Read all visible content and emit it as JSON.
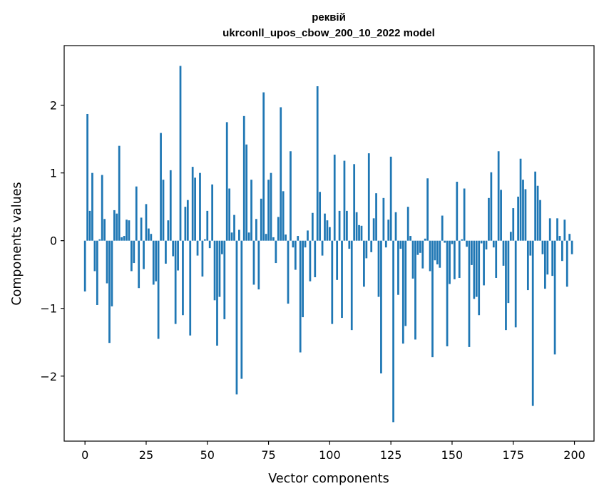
{
  "chart_data": {
    "type": "bar",
    "title": "реквій",
    "subtitle": "ukrconll_upos_cbow_200_10_2022 model",
    "xlabel": "Vector components",
    "ylabel": "Components values",
    "xlim": [
      -8.5,
      208
    ],
    "ylim": [
      -2.96,
      2.88
    ],
    "xticks": [
      0,
      25,
      50,
      75,
      100,
      125,
      150,
      175,
      200
    ],
    "yticks": [
      -2,
      -1,
      0,
      1,
      2
    ],
    "ytick_labels": [
      "−2",
      "−1",
      "0",
      "1",
      "2"
    ],
    "bar_color": "#1f77b4",
    "grid": false,
    "legend": "none",
    "x": [
      0,
      1,
      2,
      3,
      4,
      5,
      6,
      7,
      8,
      9,
      10,
      11,
      12,
      13,
      14,
      15,
      16,
      17,
      18,
      19,
      20,
      21,
      22,
      23,
      24,
      25,
      26,
      27,
      28,
      29,
      30,
      31,
      32,
      33,
      34,
      35,
      36,
      37,
      38,
      39,
      40,
      41,
      42,
      43,
      44,
      45,
      46,
      47,
      48,
      49,
      50,
      51,
      52,
      53,
      54,
      55,
      56,
      57,
      58,
      59,
      60,
      61,
      62,
      63,
      64,
      65,
      66,
      67,
      68,
      69,
      70,
      71,
      72,
      73,
      74,
      75,
      76,
      77,
      78,
      79,
      80,
      81,
      82,
      83,
      84,
      85,
      86,
      87,
      88,
      89,
      90,
      91,
      92,
      93,
      94,
      95,
      96,
      97,
      98,
      99,
      100,
      101,
      102,
      103,
      104,
      105,
      106,
      107,
      108,
      109,
      110,
      111,
      112,
      113,
      114,
      115,
      116,
      117,
      118,
      119,
      120,
      121,
      122,
      123,
      124,
      125,
      126,
      127,
      128,
      129,
      130,
      131,
      132,
      133,
      134,
      135,
      136,
      137,
      138,
      139,
      140,
      141,
      142,
      143,
      144,
      145,
      146,
      147,
      148,
      149,
      150,
      151,
      152,
      153,
      154,
      155,
      156,
      157,
      158,
      159,
      160,
      161,
      162,
      163,
      164,
      165,
      166,
      167,
      168,
      169,
      170,
      171,
      172,
      173,
      174,
      175,
      176,
      177,
      178,
      179,
      180,
      181,
      182,
      183,
      184,
      185,
      186,
      187,
      188,
      189,
      190,
      191,
      192,
      193,
      194,
      195,
      196,
      197,
      198,
      199
    ],
    "values": [
      -0.75,
      1.87,
      0.44,
      1.0,
      -0.45,
      -0.95,
      0.02,
      0.97,
      0.32,
      -0.63,
      -1.51,
      -0.97,
      0.45,
      0.4,
      1.4,
      0.05,
      0.07,
      0.31,
      0.3,
      -0.45,
      -0.33,
      0.8,
      -0.7,
      0.34,
      -0.42,
      0.54,
      0.18,
      0.1,
      -0.65,
      -0.6,
      -1.45,
      1.59,
      0.9,
      -0.34,
      0.3,
      1.04,
      -0.23,
      -1.23,
      -0.44,
      2.58,
      -1.1,
      0.5,
      0.6,
      -1.4,
      1.09,
      0.93,
      -0.22,
      1.0,
      -0.53,
      0.02,
      0.44,
      -0.11,
      0.83,
      -0.88,
      -1.55,
      -0.83,
      -0.2,
      -1.16,
      1.75,
      0.77,
      0.12,
      0.38,
      -2.27,
      0.16,
      -2.04,
      1.84,
      1.42,
      0.12,
      0.9,
      -0.65,
      0.32,
      -0.72,
      0.62,
      2.19,
      0.1,
      0.9,
      1.0,
      0.05,
      -0.33,
      0.35,
      1.97,
      0.73,
      0.09,
      -0.93,
      1.32,
      -0.1,
      -0.43,
      0.07,
      -1.65,
      -1.13,
      -0.1,
      0.15,
      -0.6,
      0.41,
      -0.54,
      2.28,
      0.72,
      -0.22,
      0.4,
      0.3,
      0.2,
      -1.23,
      1.27,
      -0.58,
      0.44,
      -1.14,
      1.18,
      0.44,
      -0.12,
      -1.32,
      1.13,
      0.42,
      0.23,
      0.22,
      -0.68,
      -0.26,
      1.29,
      -0.17,
      0.33,
      0.7,
      -0.83,
      -1.96,
      0.63,
      -0.1,
      0.31,
      1.24,
      -2.68,
      0.42,
      -0.8,
      -0.12,
      -1.52,
      -1.26,
      0.5,
      0.07,
      -0.56,
      -1.46,
      -0.21,
      -0.18,
      -0.41,
      0.03,
      0.92,
      -0.45,
      -1.72,
      -0.29,
      -0.35,
      -0.4,
      0.37,
      -0.03,
      -1.56,
      -0.64,
      -0.05,
      -0.57,
      0.87,
      -0.55,
      0.02,
      0.77,
      -0.09,
      -1.57,
      -0.36,
      -0.86,
      -0.83,
      -1.1,
      -0.04,
      -0.66,
      -0.13,
      0.63,
      1.01,
      -0.1,
      -0.55,
      1.32,
      0.75,
      -0.37,
      -1.32,
      -0.92,
      0.13,
      0.48,
      -1.28,
      0.65,
      1.21,
      0.9,
      0.76,
      -0.73,
      -0.22,
      -2.44,
      1.02,
      0.81,
      0.6,
      -0.2,
      -0.71,
      -0.5,
      0.33,
      -0.52,
      -1.68,
      0.33,
      0.07,
      -0.3,
      0.31,
      -0.68,
      0.1,
      -0.2
    ]
  }
}
